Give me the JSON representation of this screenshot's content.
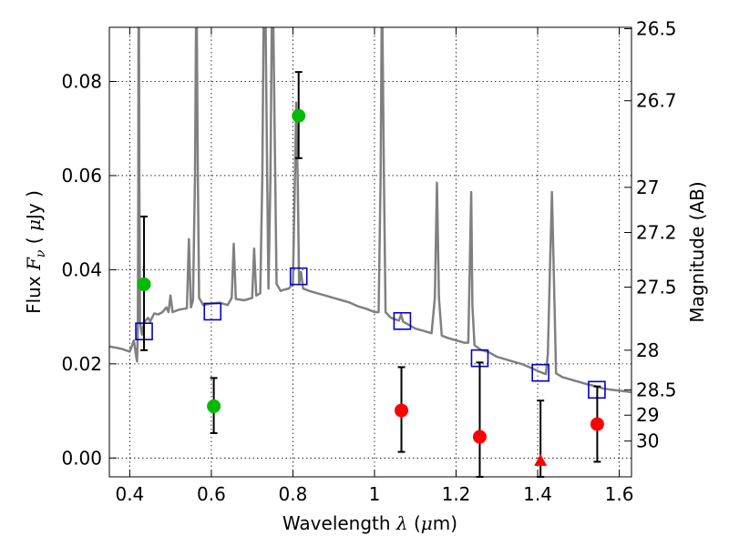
{
  "chart_data": {
    "type": "scatter",
    "title": "",
    "xlabel": "Wavelength  λ (μm)",
    "ylabel": "Flux  Fν  ( μJy )",
    "ylabel_right": "Magnitude (AB)",
    "xlim": [
      0.35,
      1.63
    ],
    "ylim": [
      -0.004,
      0.0915
    ],
    "grid": true,
    "x_ticks": [
      0.4,
      0.6,
      0.8,
      1.0,
      1.2,
      1.4,
      1.6
    ],
    "x_tick_labels": [
      "0.4",
      "0.6",
      "0.8",
      "1",
      "1.2",
      "1.4",
      "1.6"
    ],
    "y_ticks": [
      0.0,
      0.02,
      0.04,
      0.06,
      0.08
    ],
    "y_tick_labels": [
      "0.00",
      "0.02",
      "0.04",
      "0.06",
      "0.08"
    ],
    "right_ticks": [
      {
        "label": "26.5",
        "flux": 0.0912
      },
      {
        "label": "26.7",
        "flux": 0.0759
      },
      {
        "label": "27",
        "flux": 0.0575
      },
      {
        "label": "27.2",
        "flux": 0.0479
      },
      {
        "label": "27.5",
        "flux": 0.0363
      },
      {
        "label": "28",
        "flux": 0.0229
      },
      {
        "label": "28.5",
        "flux": 0.0145
      },
      {
        "label": "29",
        "flux": 0.0091
      },
      {
        "label": "30",
        "flux": 0.0036
      }
    ],
    "series": [
      {
        "kind": "line",
        "color": "#808080",
        "points": [
          [
            0.35,
            0.0237
          ],
          [
            0.38,
            0.0232
          ],
          [
            0.4,
            0.0226
          ],
          [
            0.41,
            0.025
          ],
          [
            0.415,
            0.022
          ],
          [
            0.418,
            0.0205
          ],
          [
            0.42,
            0.028
          ],
          [
            0.421,
            0.06
          ],
          [
            0.4215,
            0.0915
          ],
          [
            0.4225,
            0.0915
          ],
          [
            0.4235,
            0.06
          ],
          [
            0.425,
            0.029
          ],
          [
            0.43,
            0.0262
          ],
          [
            0.435,
            0.0288
          ],
          [
            0.44,
            0.0293
          ],
          [
            0.445,
            0.0298
          ],
          [
            0.45,
            0.029
          ],
          [
            0.46,
            0.0307
          ],
          [
            0.47,
            0.0305
          ],
          [
            0.48,
            0.031
          ],
          [
            0.49,
            0.032
          ],
          [
            0.495,
            0.031
          ],
          [
            0.5,
            0.0345
          ],
          [
            0.505,
            0.031
          ],
          [
            0.52,
            0.0315
          ],
          [
            0.54,
            0.0318
          ],
          [
            0.545,
            0.0465
          ],
          [
            0.55,
            0.032
          ],
          [
            0.555,
            0.0335
          ],
          [
            0.56,
            0.06
          ],
          [
            0.5625,
            0.0915
          ],
          [
            0.5645,
            0.0915
          ],
          [
            0.567,
            0.06
          ],
          [
            0.57,
            0.034
          ],
          [
            0.58,
            0.0325
          ],
          [
            0.6,
            0.0328
          ],
          [
            0.62,
            0.033
          ],
          [
            0.64,
            0.0325
          ],
          [
            0.65,
            0.034
          ],
          [
            0.655,
            0.0455
          ],
          [
            0.66,
            0.0338
          ],
          [
            0.68,
            0.0335
          ],
          [
            0.7,
            0.034
          ],
          [
            0.705,
            0.0445
          ],
          [
            0.71,
            0.0345
          ],
          [
            0.72,
            0.035
          ],
          [
            0.725,
            0.06
          ],
          [
            0.728,
            0.0915
          ],
          [
            0.733,
            0.0915
          ],
          [
            0.737,
            0.06
          ],
          [
            0.74,
            0.036
          ],
          [
            0.745,
            0.06
          ],
          [
            0.748,
            0.0915
          ],
          [
            0.752,
            0.0915
          ],
          [
            0.756,
            0.065
          ],
          [
            0.76,
            0.037
          ],
          [
            0.77,
            0.0355
          ],
          [
            0.78,
            0.0358
          ],
          [
            0.79,
            0.036
          ],
          [
            0.8,
            0.037
          ],
          [
            0.805,
            0.06
          ],
          [
            0.808,
            0.0755
          ],
          [
            0.812,
            0.058
          ],
          [
            0.815,
            0.037
          ],
          [
            0.82,
            0.0395
          ],
          [
            0.825,
            0.036
          ],
          [
            0.84,
            0.0355
          ],
          [
            0.86,
            0.035
          ],
          [
            0.88,
            0.0345
          ],
          [
            0.9,
            0.034
          ],
          [
            0.92,
            0.0335
          ],
          [
            0.94,
            0.033
          ],
          [
            0.96,
            0.0322
          ],
          [
            0.98,
            0.0317
          ],
          [
            1.0,
            0.031
          ],
          [
            1.01,
            0.031
          ],
          [
            1.015,
            0.06
          ],
          [
            1.0175,
            0.0915
          ],
          [
            1.0195,
            0.0915
          ],
          [
            1.023,
            0.06
          ],
          [
            1.027,
            0.031
          ],
          [
            1.04,
            0.0298
          ],
          [
            1.06,
            0.0292
          ],
          [
            1.065,
            0.0305
          ],
          [
            1.07,
            0.029
          ],
          [
            1.08,
            0.0285
          ],
          [
            1.1,
            0.0275
          ],
          [
            1.12,
            0.027
          ],
          [
            1.14,
            0.0265
          ],
          [
            1.148,
            0.034
          ],
          [
            1.153,
            0.0585
          ],
          [
            1.158,
            0.034
          ],
          [
            1.165,
            0.026
          ],
          [
            1.18,
            0.0255
          ],
          [
            1.2,
            0.025
          ],
          [
            1.22,
            0.0245
          ],
          [
            1.23,
            0.0245
          ],
          [
            1.237,
            0.0565
          ],
          [
            1.24,
            0.0325
          ],
          [
            1.245,
            0.024
          ],
          [
            1.26,
            0.023
          ],
          [
            1.28,
            0.0225
          ],
          [
            1.3,
            0.0215
          ],
          [
            1.32,
            0.021
          ],
          [
            1.34,
            0.0205
          ],
          [
            1.36,
            0.02
          ],
          [
            1.38,
            0.0193
          ],
          [
            1.4,
            0.0185
          ],
          [
            1.42,
            0.0178
          ],
          [
            1.425,
            0.022
          ],
          [
            1.43,
            0.04
          ],
          [
            1.435,
            0.0565
          ],
          [
            1.44,
            0.038
          ],
          [
            1.445,
            0.018
          ],
          [
            1.46,
            0.0172
          ],
          [
            1.48,
            0.0167
          ],
          [
            1.5,
            0.0162
          ],
          [
            1.52,
            0.0157
          ],
          [
            1.54,
            0.0153
          ],
          [
            1.56,
            0.0148
          ],
          [
            1.58,
            0.0145
          ],
          [
            1.6,
            0.0143
          ],
          [
            1.63,
            0.014
          ]
        ]
      },
      {
        "kind": "open-square",
        "color": "#0000cc",
        "points": [
          [
            0.435,
            0.0269
          ],
          [
            0.603,
            0.0311
          ],
          [
            0.814,
            0.0386
          ],
          [
            1.068,
            0.0291
          ],
          [
            1.258,
            0.0212
          ],
          [
            1.407,
            0.0181
          ],
          [
            1.545,
            0.0145
          ]
        ]
      },
      {
        "kind": "circle",
        "color": "#00bb00",
        "points": [
          {
            "x": 0.435,
            "y": 0.0369,
            "err_lo": 0.0229,
            "err_hi": 0.0513
          },
          {
            "x": 0.606,
            "y": 0.011,
            "err_lo": 0.0053,
            "err_hi": 0.017
          },
          {
            "x": 0.814,
            "y": 0.0727,
            "err_lo": 0.0637,
            "err_hi": 0.082
          }
        ]
      },
      {
        "kind": "circle",
        "color": "#ff0000",
        "points": [
          {
            "x": 1.066,
            "y": 0.0101,
            "err_lo": 0.0013,
            "err_hi": 0.0193
          },
          {
            "x": 1.258,
            "y": 0.0045,
            "err_lo": -0.004,
            "err_hi": 0.0203
          },
          {
            "x": 1.546,
            "y": 0.0072,
            "err_lo": -0.0008,
            "err_hi": 0.0152
          }
        ]
      },
      {
        "kind": "triangle",
        "color": "#ff0000",
        "points": [
          {
            "x": 1.407,
            "y": -0.0005,
            "err_lo": -0.004,
            "err_hi": 0.0122
          }
        ]
      }
    ]
  }
}
